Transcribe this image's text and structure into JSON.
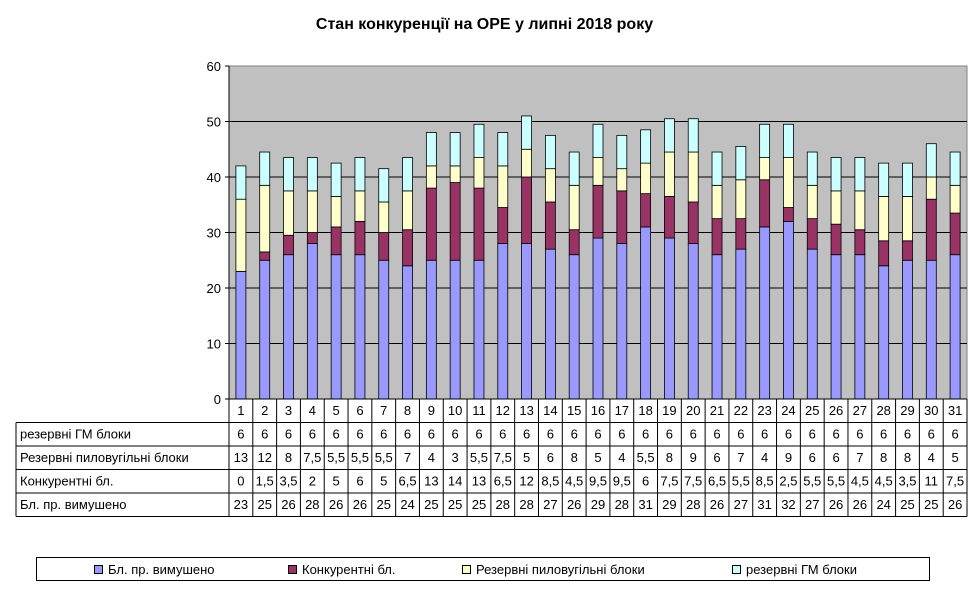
{
  "chart_data": {
    "type": "bar",
    "stacked": true,
    "title": "Стан конкуренції на ОРЕ  у липні 2018 року",
    "ylim": [
      0,
      60
    ],
    "yticks": [
      "0",
      "10",
      "20",
      "30",
      "40",
      "50",
      "60"
    ],
    "grid": true,
    "legend_placement": "bottom",
    "categories": [
      "1",
      "2",
      "3",
      "4",
      "5",
      "6",
      "7",
      "8",
      "9",
      "10",
      "11",
      "12",
      "13",
      "14",
      "15",
      "16",
      "17",
      "18",
      "19",
      "20",
      "21",
      "22",
      "23",
      "24",
      "25",
      "26",
      "27",
      "28",
      "29",
      "30",
      "31"
    ],
    "series": [
      {
        "name": "Бл. пр. вимушено",
        "color": "#9999ff",
        "values": [
          23,
          25,
          26,
          28,
          26,
          26,
          25,
          24,
          25,
          25,
          25,
          28,
          28,
          27,
          26,
          29,
          28,
          31,
          29,
          28,
          26,
          27,
          31,
          32,
          27,
          26,
          26,
          24,
          25,
          25,
          26
        ],
        "labels": [
          "23",
          "25",
          "26",
          "28",
          "26",
          "26",
          "25",
          "24",
          "25",
          "25",
          "25",
          "28",
          "28",
          "27",
          "26",
          "29",
          "28",
          "31",
          "29",
          "28",
          "26",
          "27",
          "31",
          "32",
          "27",
          "26",
          "26",
          "24",
          "25",
          "25",
          "26"
        ]
      },
      {
        "name": "Конкурентні  бл.",
        "color": "#993366",
        "values": [
          0,
          1.5,
          3.5,
          2,
          5,
          6,
          5,
          6.5,
          13,
          14,
          13,
          6.5,
          12,
          8.5,
          4.5,
          9.5,
          9.5,
          6,
          7.5,
          7.5,
          6.5,
          5.5,
          8.5,
          2.5,
          5.5,
          5.5,
          4.5,
          4.5,
          3.5,
          11,
          7.5
        ],
        "labels": [
          "0",
          "1,5",
          "3,5",
          "2",
          "5",
          "6",
          "5",
          "6,5",
          "13",
          "14",
          "13",
          "6,5",
          "12",
          "8,5",
          "4,5",
          "9,5",
          "9,5",
          "6",
          "7,5",
          "7,5",
          "6,5",
          "5,5",
          "8,5",
          "2,5",
          "5,5",
          "5,5",
          "4,5",
          "4,5",
          "3,5",
          "11",
          "7,5"
        ]
      },
      {
        "name": "Резервні пиловугільні  блоки",
        "color": "#ffffcc",
        "values": [
          13,
          12,
          8,
          7.5,
          5.5,
          5.5,
          5.5,
          7,
          4,
          3,
          5.5,
          7.5,
          5,
          6,
          8,
          5,
          4,
          5.5,
          8,
          9,
          6,
          7,
          4,
          9,
          6,
          6,
          7,
          8,
          8,
          4,
          5
        ],
        "labels": [
          "13",
          "12",
          "8",
          "7,5",
          "5,5",
          "5,5",
          "5,5",
          "7",
          "4",
          "3",
          "5,5",
          "7,5",
          "5",
          "6",
          "8",
          "5",
          "4",
          "5,5",
          "8",
          "9",
          "6",
          "7",
          "4",
          "9",
          "6",
          "6",
          "7",
          "8",
          "8",
          "4",
          "5"
        ]
      },
      {
        "name": "резервні ГМ блоки",
        "color": "#ccffff",
        "values": [
          6,
          6,
          6,
          6,
          6,
          6,
          6,
          6,
          6,
          6,
          6,
          6,
          6,
          6,
          6,
          6,
          6,
          6,
          6,
          6,
          6,
          6,
          6,
          6,
          6,
          6,
          6,
          6,
          6,
          6,
          6
        ],
        "labels": [
          "6",
          "6",
          "6",
          "6",
          "6",
          "6",
          "6",
          "6",
          "6",
          "6",
          "6",
          "6",
          "6",
          "6",
          "6",
          "6",
          "6",
          "6",
          "6",
          "6",
          "6",
          "6",
          "6",
          "6",
          "6",
          "6",
          "6",
          "6",
          "6",
          "6",
          "6"
        ]
      }
    ],
    "table_rows": [
      {
        "label": "резервні ГМ блоки",
        "series_index": 3
      },
      {
        "label": "Резервні пиловугільні  блоки",
        "series_index": 2
      },
      {
        "label": "Конкурентні  бл.",
        "series_index": 1
      },
      {
        "label": "Бл. пр. вимушено",
        "series_index": 0
      }
    ],
    "legend": [
      "Бл. пр. вимушено",
      "Конкурентні  бл.",
      "Резервні пиловугільні  блоки",
      "резервні ГМ блоки"
    ]
  }
}
